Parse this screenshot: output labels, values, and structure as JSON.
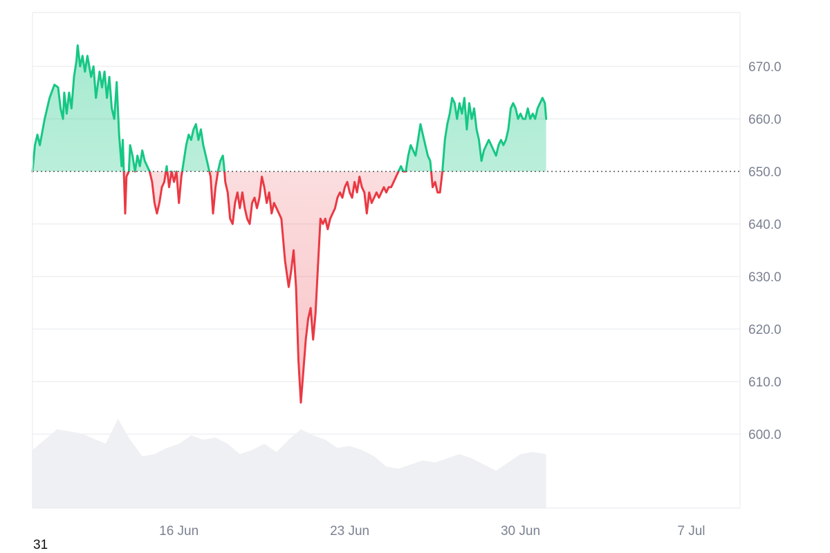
{
  "chart_data": {
    "type": "area",
    "baseline": 650,
    "ylim": [
      596,
      678
    ],
    "yticks": [
      {
        "value": 600,
        "label": "600.0"
      },
      {
        "value": 610,
        "label": "610.0"
      },
      {
        "value": 620,
        "label": "620.0"
      },
      {
        "value": 630,
        "label": "630.0"
      },
      {
        "value": 640,
        "label": "640.0"
      },
      {
        "value": 650,
        "label": "650.0"
      },
      {
        "value": 660,
        "label": "660.0"
      },
      {
        "value": 670,
        "label": "670.0"
      }
    ],
    "x_start": "2025-06-10",
    "x_end": "2025-07-09",
    "xticks": [
      {
        "date": "2025-06-16",
        "label": "16 Jun"
      },
      {
        "date": "2025-06-23",
        "label": "23 Jun"
      },
      {
        "date": "2025-06-30",
        "label": "30 Jun"
      },
      {
        "date": "2025-07-07",
        "label": "7 Jul"
      }
    ],
    "grid": true,
    "colors": {
      "up": "#16c784",
      "down": "#ea3943",
      "volume": "#eef0f3",
      "grid": "#e9ecef",
      "axis_text": "#7a8191"
    },
    "series": [
      {
        "values": [
          [
            0,
            650
          ],
          [
            0.1,
            655
          ],
          [
            0.2,
            657
          ],
          [
            0.3,
            655
          ],
          [
            0.5,
            660
          ],
          [
            0.7,
            664
          ],
          [
            0.9,
            666.5
          ],
          [
            1.05,
            666
          ],
          [
            1.15,
            662
          ],
          [
            1.25,
            660
          ],
          [
            1.3,
            665
          ],
          [
            1.4,
            661
          ],
          [
            1.5,
            665
          ],
          [
            1.6,
            662
          ],
          [
            1.7,
            668
          ],
          [
            1.8,
            671
          ],
          [
            1.85,
            674
          ],
          [
            1.95,
            670
          ],
          [
            2.05,
            672
          ],
          [
            2.15,
            669
          ],
          [
            2.25,
            672
          ],
          [
            2.4,
            668
          ],
          [
            2.5,
            670
          ],
          [
            2.6,
            664
          ],
          [
            2.75,
            669
          ],
          [
            2.85,
            666
          ],
          [
            2.95,
            669
          ],
          [
            3.05,
            664
          ],
          [
            3.15,
            668
          ],
          [
            3.25,
            662
          ],
          [
            3.35,
            660
          ],
          [
            3.45,
            667
          ],
          [
            3.55,
            657
          ],
          [
            3.65,
            651
          ],
          [
            3.7,
            656
          ],
          [
            3.75,
            649
          ],
          [
            3.8,
            642
          ],
          [
            3.85,
            649
          ],
          [
            3.95,
            650
          ],
          [
            4.0,
            655
          ],
          [
            4.1,
            653
          ],
          [
            4.2,
            650
          ],
          [
            4.3,
            653
          ],
          [
            4.4,
            651
          ],
          [
            4.5,
            654
          ],
          [
            4.6,
            652
          ],
          [
            4.7,
            651
          ],
          [
            4.8,
            650
          ],
          [
            4.9,
            648
          ],
          [
            5.0,
            644
          ],
          [
            5.1,
            642
          ],
          [
            5.2,
            644
          ],
          [
            5.3,
            647
          ],
          [
            5.4,
            648
          ],
          [
            5.5,
            651
          ],
          [
            5.6,
            647
          ],
          [
            5.7,
            650
          ],
          [
            5.8,
            648
          ],
          [
            5.9,
            650
          ],
          [
            6.0,
            644
          ],
          [
            6.1,
            649
          ],
          [
            6.2,
            652
          ],
          [
            6.3,
            655
          ],
          [
            6.4,
            657
          ],
          [
            6.5,
            656
          ],
          [
            6.6,
            658
          ],
          [
            6.7,
            659
          ],
          [
            6.8,
            656
          ],
          [
            6.9,
            658
          ],
          [
            7.0,
            655
          ],
          [
            7.1,
            653
          ],
          [
            7.2,
            651
          ],
          [
            7.3,
            649
          ],
          [
            7.4,
            642
          ],
          [
            7.5,
            647
          ],
          [
            7.6,
            650
          ],
          [
            7.7,
            652
          ],
          [
            7.8,
            653
          ],
          [
            7.85,
            651
          ],
          [
            7.9,
            648
          ],
          [
            8.0,
            646
          ],
          [
            8.1,
            641
          ],
          [
            8.2,
            640
          ],
          [
            8.3,
            644
          ],
          [
            8.4,
            646
          ],
          [
            8.5,
            643
          ],
          [
            8.6,
            646
          ],
          [
            8.7,
            643
          ],
          [
            8.8,
            641
          ],
          [
            8.9,
            640
          ],
          [
            9.0,
            644
          ],
          [
            9.1,
            645
          ],
          [
            9.2,
            643
          ],
          [
            9.3,
            645
          ],
          [
            9.4,
            649
          ],
          [
            9.5,
            647
          ],
          [
            9.6,
            644
          ],
          [
            9.7,
            646
          ],
          [
            9.8,
            642
          ],
          [
            9.9,
            644
          ],
          [
            10.0,
            643
          ],
          [
            10.1,
            642
          ],
          [
            10.2,
            641
          ],
          [
            10.35,
            633
          ],
          [
            10.5,
            628
          ],
          [
            10.6,
            631
          ],
          [
            10.7,
            635
          ],
          [
            10.8,
            628
          ],
          [
            10.9,
            614
          ],
          [
            11.0,
            606
          ],
          [
            11.05,
            609
          ],
          [
            11.1,
            612
          ],
          [
            11.2,
            618
          ],
          [
            11.3,
            622
          ],
          [
            11.4,
            624
          ],
          [
            11.5,
            618
          ],
          [
            11.6,
            623
          ],
          [
            11.7,
            632
          ],
          [
            11.8,
            641
          ],
          [
            11.9,
            640
          ],
          [
            12.0,
            641
          ],
          [
            12.1,
            639
          ],
          [
            12.2,
            641
          ],
          [
            12.3,
            642
          ],
          [
            12.4,
            643
          ],
          [
            12.5,
            645
          ],
          [
            12.6,
            646
          ],
          [
            12.7,
            645
          ],
          [
            12.8,
            647
          ],
          [
            12.9,
            648
          ],
          [
            13.0,
            646
          ],
          [
            13.1,
            645
          ],
          [
            13.2,
            648
          ],
          [
            13.3,
            646
          ],
          [
            13.4,
            649
          ],
          [
            13.5,
            647
          ],
          [
            13.6,
            646
          ],
          [
            13.7,
            642
          ],
          [
            13.8,
            646
          ],
          [
            13.9,
            644
          ],
          [
            14.0,
            645
          ],
          [
            14.1,
            646
          ],
          [
            14.2,
            645
          ],
          [
            14.3,
            646
          ],
          [
            14.4,
            647
          ],
          [
            14.5,
            646
          ],
          [
            14.6,
            647
          ],
          [
            14.7,
            647
          ],
          [
            14.8,
            648
          ],
          [
            14.9,
            649
          ],
          [
            15.0,
            650
          ],
          [
            15.1,
            651
          ],
          [
            15.2,
            650
          ],
          [
            15.3,
            650
          ],
          [
            15.4,
            653
          ],
          [
            15.5,
            655
          ],
          [
            15.6,
            654
          ],
          [
            15.7,
            653
          ],
          [
            15.8,
            656
          ],
          [
            15.9,
            659
          ],
          [
            16.0,
            657
          ],
          [
            16.1,
            655
          ],
          [
            16.2,
            653
          ],
          [
            16.3,
            652
          ],
          [
            16.4,
            647
          ],
          [
            16.5,
            648
          ],
          [
            16.6,
            646
          ],
          [
            16.7,
            646
          ],
          [
            16.8,
            650
          ],
          [
            16.9,
            656
          ],
          [
            17.0,
            659
          ],
          [
            17.1,
            661
          ],
          [
            17.2,
            664
          ],
          [
            17.3,
            663
          ],
          [
            17.4,
            660
          ],
          [
            17.5,
            663
          ],
          [
            17.6,
            661
          ],
          [
            17.7,
            664
          ],
          [
            17.8,
            658
          ],
          [
            17.9,
            663
          ],
          [
            18.0,
            660
          ],
          [
            18.1,
            662
          ],
          [
            18.2,
            658
          ],
          [
            18.3,
            656
          ],
          [
            18.4,
            652
          ],
          [
            18.5,
            654
          ],
          [
            18.6,
            655
          ],
          [
            18.7,
            656
          ],
          [
            18.8,
            655
          ],
          [
            18.9,
            654
          ],
          [
            19.0,
            653
          ],
          [
            19.1,
            655
          ],
          [
            19.2,
            656
          ],
          [
            19.3,
            655
          ],
          [
            19.4,
            656
          ],
          [
            19.5,
            658
          ],
          [
            19.6,
            662
          ],
          [
            19.7,
            663
          ],
          [
            19.8,
            662
          ],
          [
            19.9,
            660
          ],
          [
            20.0,
            661
          ],
          [
            20.1,
            660
          ],
          [
            20.2,
            660
          ],
          [
            20.3,
            662
          ],
          [
            20.4,
            660
          ],
          [
            20.5,
            661
          ],
          [
            20.6,
            660
          ],
          [
            20.7,
            662
          ],
          [
            20.8,
            663
          ],
          [
            20.9,
            664
          ],
          [
            21.0,
            663
          ],
          [
            21.05,
            660
          ]
        ]
      }
    ],
    "volume": [
      [
        0.0,
        0.28
      ],
      [
        1.0,
        0.38
      ],
      [
        2.0,
        0.36
      ],
      [
        3.0,
        0.31
      ],
      [
        3.5,
        0.43
      ],
      [
        4.0,
        0.33
      ],
      [
        4.5,
        0.25
      ],
      [
        5.0,
        0.26
      ],
      [
        5.5,
        0.29
      ],
      [
        6.0,
        0.31
      ],
      [
        6.5,
        0.35
      ],
      [
        7.0,
        0.33
      ],
      [
        7.5,
        0.34
      ],
      [
        8.0,
        0.31
      ],
      [
        8.5,
        0.26
      ],
      [
        9.0,
        0.28
      ],
      [
        9.5,
        0.31
      ],
      [
        10.0,
        0.27
      ],
      [
        10.5,
        0.33
      ],
      [
        11.0,
        0.38
      ],
      [
        11.5,
        0.35
      ],
      [
        12.0,
        0.33
      ],
      [
        12.5,
        0.29
      ],
      [
        13.0,
        0.3
      ],
      [
        13.5,
        0.28
      ],
      [
        14.0,
        0.25
      ],
      [
        14.5,
        0.2
      ],
      [
        15.0,
        0.19
      ],
      [
        15.5,
        0.21
      ],
      [
        16.0,
        0.23
      ],
      [
        16.5,
        0.22
      ],
      [
        17.0,
        0.24
      ],
      [
        17.5,
        0.26
      ],
      [
        18.0,
        0.24
      ],
      [
        18.5,
        0.21
      ],
      [
        19.0,
        0.18
      ],
      [
        19.5,
        0.22
      ],
      [
        20.0,
        0.26
      ],
      [
        20.5,
        0.27
      ],
      [
        21.05,
        0.26
      ]
    ]
  },
  "footer_label": "31"
}
